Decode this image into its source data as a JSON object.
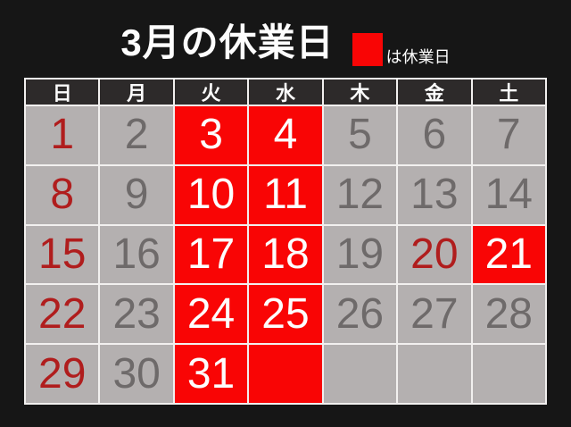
{
  "page": {
    "background": "#161616"
  },
  "header": {
    "title": "3月の休業日",
    "legend": {
      "swatch_color": "#f90505",
      "label": "は休業日"
    }
  },
  "calendar": {
    "day_headers": [
      "日",
      "月",
      "火",
      "水",
      "木",
      "金",
      "土"
    ],
    "colors": {
      "grid_line": "#f2f0ef",
      "header_bg": "#2d2a2a",
      "header_text": "#fdfdfd",
      "cell_bg": "#b4b0b0",
      "normal_text": "#6e6a6a",
      "holiday_text": "#b01d1d",
      "closed_bg": "#f90505",
      "closed_text": "#fdfdfd"
    },
    "weeks": [
      [
        {
          "day": "1",
          "type": "holiday"
        },
        {
          "day": "2",
          "type": "normal"
        },
        {
          "day": "3",
          "type": "closed"
        },
        {
          "day": "4",
          "type": "closed"
        },
        {
          "day": "5",
          "type": "normal"
        },
        {
          "day": "6",
          "type": "normal"
        },
        {
          "day": "7",
          "type": "normal"
        }
      ],
      [
        {
          "day": "8",
          "type": "holiday"
        },
        {
          "day": "9",
          "type": "normal"
        },
        {
          "day": "10",
          "type": "closed"
        },
        {
          "day": "11",
          "type": "closed"
        },
        {
          "day": "12",
          "type": "normal"
        },
        {
          "day": "13",
          "type": "normal"
        },
        {
          "day": "14",
          "type": "normal"
        }
      ],
      [
        {
          "day": "15",
          "type": "holiday"
        },
        {
          "day": "16",
          "type": "normal"
        },
        {
          "day": "17",
          "type": "closed"
        },
        {
          "day": "18",
          "type": "closed"
        },
        {
          "day": "19",
          "type": "normal"
        },
        {
          "day": "20",
          "type": "holiday"
        },
        {
          "day": "21",
          "type": "closed"
        }
      ],
      [
        {
          "day": "22",
          "type": "holiday"
        },
        {
          "day": "23",
          "type": "normal"
        },
        {
          "day": "24",
          "type": "closed"
        },
        {
          "day": "25",
          "type": "closed"
        },
        {
          "day": "26",
          "type": "normal"
        },
        {
          "day": "27",
          "type": "normal"
        },
        {
          "day": "28",
          "type": "normal"
        }
      ],
      [
        {
          "day": "29",
          "type": "holiday"
        },
        {
          "day": "30",
          "type": "normal"
        },
        {
          "day": "31",
          "type": "closed"
        },
        {
          "day": "",
          "type": "closed"
        },
        {
          "day": "",
          "type": "normal"
        },
        {
          "day": "",
          "type": "normal"
        },
        {
          "day": "",
          "type": "normal"
        }
      ]
    ]
  }
}
